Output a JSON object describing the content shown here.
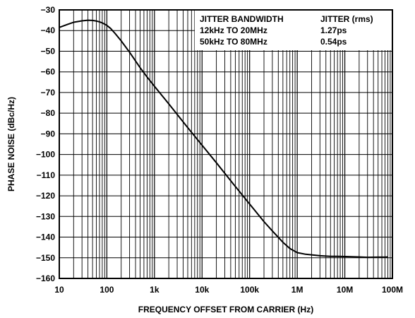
{
  "chart_data": {
    "type": "line",
    "title": "",
    "xlabel": "FREQUENCY OFFSET FROM CARRIER (Hz)",
    "ylabel": "PHASE NOISE (dBc/Hz)",
    "x_scale": "log",
    "xlim": [
      10,
      100000000
    ],
    "ylim": [
      -160,
      -30
    ],
    "grid": true,
    "x_ticks": [
      10,
      100,
      1000,
      10000,
      100000,
      1000000,
      10000000,
      100000000
    ],
    "x_tick_labels": [
      "10",
      "100",
      "1k",
      "10k",
      "100k",
      "1M",
      "10M",
      "100M"
    ],
    "y_ticks": [
      -30,
      -40,
      -50,
      -60,
      -70,
      -80,
      -90,
      -100,
      -110,
      -120,
      -130,
      -140,
      -150,
      -160
    ],
    "y_tick_labels": [
      "−30",
      "−40",
      "−50",
      "−60",
      "−70",
      "−80",
      "−90",
      "−100",
      "−110",
      "−120",
      "−130",
      "−140",
      "−150",
      "−160"
    ],
    "series": [
      {
        "x": [
          10,
          15,
          20,
          30,
          40,
          50,
          60,
          70,
          80,
          100,
          120,
          150,
          200,
          300,
          500,
          700,
          1000,
          2000,
          5000,
          10000,
          20000,
          50000,
          100000,
          200000,
          300000,
          500000,
          700000,
          1000000,
          1500000,
          2000000,
          3000000,
          5000000,
          7000000,
          10000000,
          20000000,
          30000000,
          50000000,
          70000000,
          80000000
        ],
        "y": [
          -38.5,
          -37,
          -36,
          -35.3,
          -35,
          -35.1,
          -35.4,
          -35.8,
          -36.3,
          -37.5,
          -39,
          -41.5,
          -45,
          -50.5,
          -58,
          -62.5,
          -67,
          -75.5,
          -87,
          -95.5,
          -104,
          -115.5,
          -124,
          -132.5,
          -137,
          -142.5,
          -145.5,
          -147.5,
          -148.3,
          -148.6,
          -149,
          -149.3,
          -149.3,
          -149.4,
          -149.6,
          -149.8,
          -149.7,
          -149.7,
          -149.6
        ]
      }
    ],
    "legend_table": {
      "headers": [
        "JITTER BANDWIDTH",
        "JITTER (rms)"
      ],
      "rows": [
        [
          "12kHz TO 20MHz",
          "1.27ps"
        ],
        [
          "50kHz TO 80MHz",
          "0.54ps"
        ]
      ],
      "position": "top-right"
    }
  }
}
